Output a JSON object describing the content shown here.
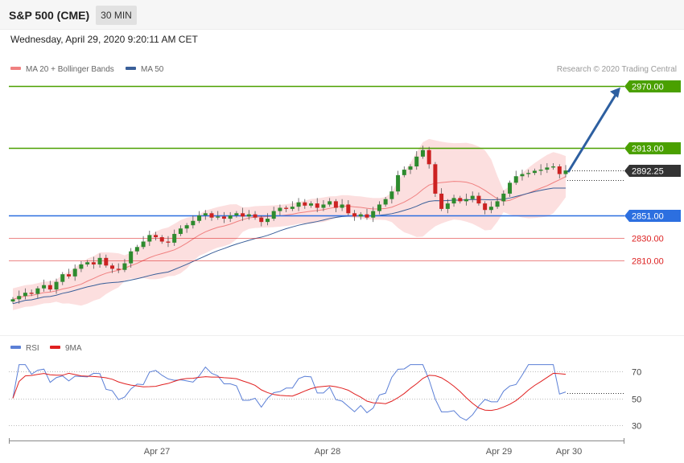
{
  "header": {
    "symbol": "S&P 500 (CME)",
    "timeframe": "30 MIN"
  },
  "datetime": "Wednesday, April 29, 2020 9:20:11 AM CET",
  "legend": {
    "ma20_label": "MA 20 + Bollinger Bands",
    "ma20_color": "#f08080",
    "ma50_label": "MA 50",
    "ma50_color": "#3a5f99",
    "credit": "Research © 2020 Trading Central"
  },
  "rsi_legend": {
    "rsi_label": "RSI",
    "rsi_color": "#5b7fd6",
    "ma9_label": "9MA",
    "ma9_color": "#e02020"
  },
  "chart_data": {
    "type": "candlestick",
    "x_axis_labels": [
      "Apr 27",
      "Apr 28",
      "Apr 29",
      "Apr 30"
    ],
    "price_range": [
      2770,
      2985
    ],
    "levels": [
      {
        "value": 2970.0,
        "label": "2970.00",
        "kind": "resistance",
        "color": "#4aa000"
      },
      {
        "value": 2913.0,
        "label": "2913.00",
        "kind": "resistance",
        "color": "#4aa000"
      },
      {
        "value": 2892.25,
        "label": "2892.25",
        "kind": "last",
        "color": "#333333"
      },
      {
        "value": 2851.0,
        "label": "2851.00",
        "kind": "pivot",
        "color": "#2c6fe0"
      },
      {
        "value": 2830.0,
        "label": "2830.00",
        "kind": "support",
        "color": "#dd2222"
      },
      {
        "value": 2810.0,
        "label": "2810.00",
        "kind": "support",
        "color": "#dd2222"
      }
    ],
    "close_path": [
      2774,
      2777,
      2780,
      2779,
      2784,
      2787,
      2783,
      2790,
      2797,
      2795,
      2802,
      2806,
      2808,
      2806,
      2812,
      2805,
      2802,
      2801,
      2807,
      2818,
      2822,
      2827,
      2833,
      2831,
      2827,
      2826,
      2834,
      2839,
      2842,
      2846,
      2851,
      2853,
      2849,
      2850,
      2848,
      2851,
      2853,
      2850,
      2852,
      2849,
      2845,
      2848,
      2855,
      2858,
      2857,
      2859,
      2863,
      2860,
      2862,
      2858,
      2861,
      2864,
      2858,
      2861,
      2853,
      2850,
      2852,
      2849,
      2855,
      2861,
      2866,
      2873,
      2888,
      2893,
      2896,
      2905,
      2911,
      2898,
      2871,
      2857,
      2862,
      2867,
      2864,
      2866,
      2869,
      2862,
      2856,
      2859,
      2864,
      2871,
      2881,
      2887,
      2889,
      2890,
      2892,
      2893,
      2895,
      2896,
      2889,
      2892.25
    ],
    "projection": {
      "from": 2892.25,
      "to": 2970.0
    },
    "rsi": {
      "levels": [
        70,
        50,
        30
      ],
      "range": [
        20,
        80
      ]
    }
  }
}
